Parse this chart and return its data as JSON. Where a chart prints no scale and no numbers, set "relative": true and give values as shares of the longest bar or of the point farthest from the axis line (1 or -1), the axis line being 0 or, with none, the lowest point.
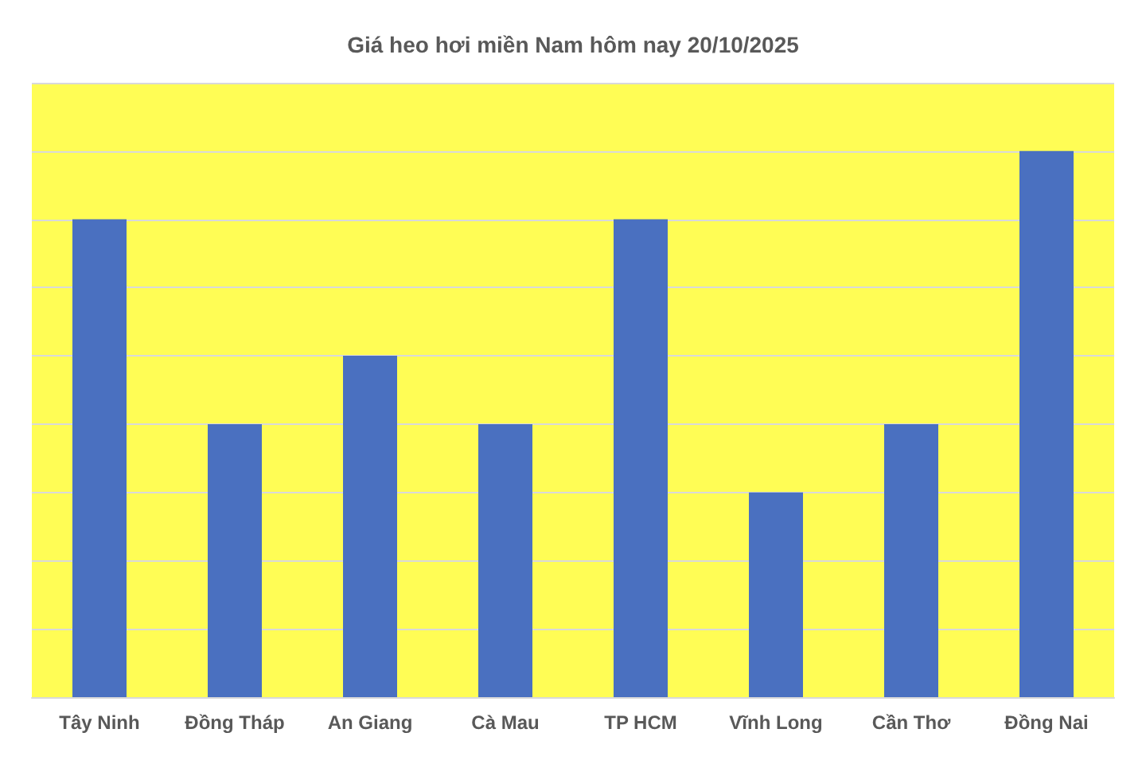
{
  "chart_data": {
    "type": "bar",
    "title": "Giá heo hơi miền Nam hôm nay 20/10/2025",
    "categories": [
      "Tây Ninh",
      "Đồng Tháp",
      "An Giang",
      "Cà Mau",
      "TP HCM",
      "Vĩnh Long",
      "Cần Thơ",
      "Đồng Nai"
    ],
    "values": [
      0.875,
      0.5,
      0.625,
      0.5,
      0.875,
      0.375,
      0.5,
      1
    ],
    "color": "#4a70c0",
    "relative": true,
    "grid": "y"
  }
}
